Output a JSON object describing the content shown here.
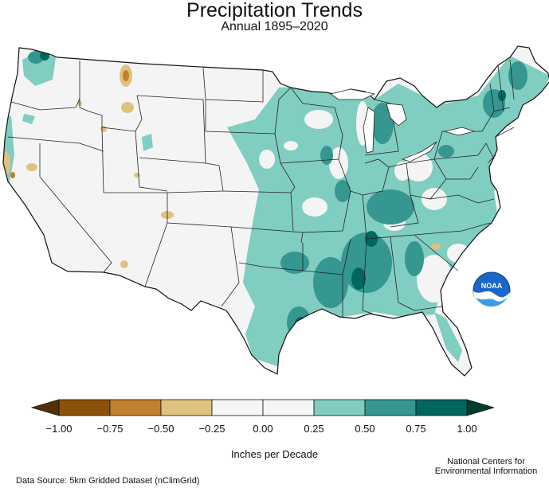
{
  "title": "Precipitation Trends",
  "subtitle": "Annual 1895–2020",
  "logo": {
    "text": "NOAA",
    "icon": "noaa-logo"
  },
  "legend": {
    "unit": "Inches per Decade",
    "ticks": [
      "−1.00",
      "−0.75",
      "−0.50",
      "−0.25",
      "0.00",
      "0.25",
      "0.50",
      "0.75",
      "1.00"
    ],
    "bins": [
      {
        "from": null,
        "to": -1.0,
        "color": "#543005"
      },
      {
        "from": -1.0,
        "to": -0.75,
        "color": "#8c510a"
      },
      {
        "from": -0.75,
        "to": -0.5,
        "color": "#bf812d"
      },
      {
        "from": -0.5,
        "to": -0.25,
        "color": "#dfc27d"
      },
      {
        "from": -0.25,
        "to": 0.0,
        "color": "#f5f5f5"
      },
      {
        "from": 0.0,
        "to": 0.25,
        "color": "#f5f5f5"
      },
      {
        "from": 0.25,
        "to": 0.5,
        "color": "#80cdc1"
      },
      {
        "from": 0.5,
        "to": 0.75,
        "color": "#35978f"
      },
      {
        "from": 0.75,
        "to": 1.0,
        "color": "#01665e"
      },
      {
        "from": 1.0,
        "to": null,
        "color": "#003c30"
      }
    ]
  },
  "source": "Data Source: 5km Gridded Dataset (nClimGrid)",
  "credit": {
    "line1": "National Centers for",
    "line2": "Environmental Information"
  }
}
